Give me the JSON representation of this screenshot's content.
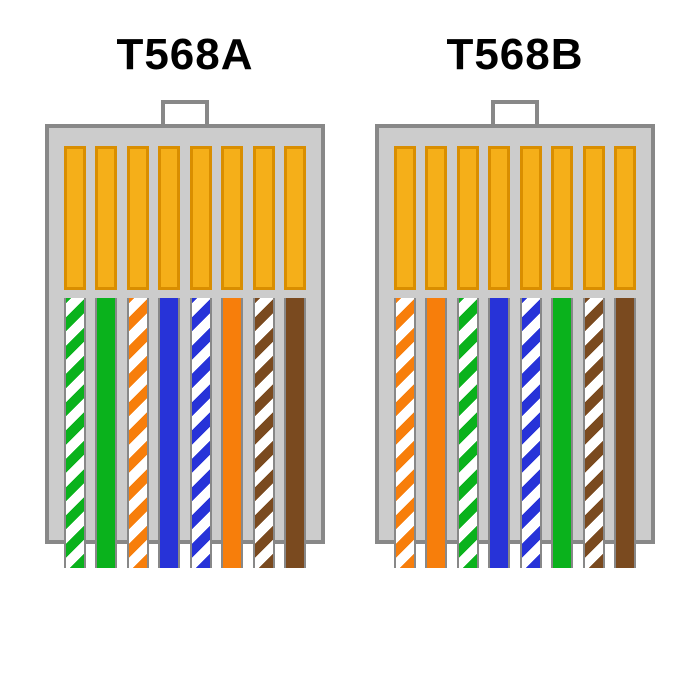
{
  "diagram": {
    "type": "infographic",
    "background_color": "#ffffff",
    "title_fontsize": 44,
    "title_fontweight": "bold",
    "title_color": "#000000",
    "connector_body_color": "#cccccc",
    "connector_border_color": "#888888",
    "pin_fill": "#f5af19",
    "pin_border": "#d98e00",
    "stripe_white": "#ffffff",
    "colors": {
      "green": "#0ab21c",
      "orange": "#f77e0b",
      "blue": "#2733d8",
      "brown": "#7a4a1f"
    },
    "connectors": [
      {
        "label": "T568A",
        "wires": [
          {
            "type": "striped",
            "color": "green"
          },
          {
            "type": "solid",
            "color": "green"
          },
          {
            "type": "striped",
            "color": "orange"
          },
          {
            "type": "solid",
            "color": "blue"
          },
          {
            "type": "striped",
            "color": "blue"
          },
          {
            "type": "solid",
            "color": "orange"
          },
          {
            "type": "striped",
            "color": "brown"
          },
          {
            "type": "solid",
            "color": "brown"
          }
        ]
      },
      {
        "label": "T568B",
        "wires": [
          {
            "type": "striped",
            "color": "orange"
          },
          {
            "type": "solid",
            "color": "orange"
          },
          {
            "type": "striped",
            "color": "green"
          },
          {
            "type": "solid",
            "color": "blue"
          },
          {
            "type": "striped",
            "color": "blue"
          },
          {
            "type": "solid",
            "color": "green"
          },
          {
            "type": "striped",
            "color": "brown"
          },
          {
            "type": "solid",
            "color": "brown"
          }
        ]
      }
    ]
  }
}
